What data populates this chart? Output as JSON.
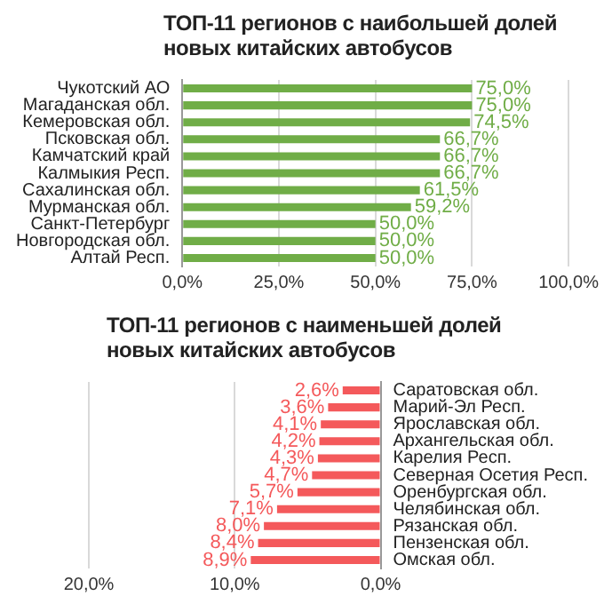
{
  "chart_data": [
    {
      "type": "bar",
      "orientation": "horizontal",
      "title": "ТОП-11 регионов с наибольшей долей новых китайских автобусов",
      "categories": [
        "Чукотский АО",
        "Магаданская обл.",
        "Кемеровская обл.",
        "Псковская обл.",
        "Камчатский край",
        "Калмыкия Респ.",
        "Сахалинская обл.",
        "Мурманская обл.",
        "Санкт-Петербург",
        "Новгородская обл.",
        "Алтай Респ."
      ],
      "series": [
        {
          "color": "#70ad47",
          "values": [
            75.0,
            75.0,
            74.5,
            66.7,
            66.7,
            66.7,
            61.5,
            59.2,
            50.0,
            50.0,
            50.0
          ],
          "value_labels": [
            "75,0%",
            "75,0%",
            "74,5%",
            "66,7%",
            "66,7%",
            "66,7%",
            "61,5%",
            "59,2%",
            "50,0%",
            "50,0%",
            "50,0%"
          ]
        }
      ],
      "xlim": [
        0,
        100
      ],
      "xticks": [
        {
          "value": 0,
          "label": "0,0%"
        },
        {
          "value": 25,
          "label": "25,0%"
        },
        {
          "value": 50,
          "label": "50,0%"
        },
        {
          "value": 75,
          "label": "75,0%"
        },
        {
          "value": 100,
          "label": "100,0%"
        }
      ],
      "grid": "x",
      "legend": false
    },
    {
      "type": "bar",
      "orientation": "horizontal",
      "title": "ТОП-11 регионов с наименьшей долей новых китайских автобусов",
      "categories": [
        "Саратовская обл.",
        "Марий-Эл Респ.",
        "Ярославская обл.",
        "Архангельская обл.",
        "Карелия Респ.",
        "Северная Осетия Респ.",
        "Оренбургская обл.",
        "Челябинская обл.",
        "Рязанская обл.",
        "Пензенская обл.",
        "Омская обл."
      ],
      "series": [
        {
          "color": "#f4595b",
          "values": [
            2.6,
            3.6,
            4.1,
            4.2,
            4.3,
            4.7,
            5.7,
            7.1,
            8.0,
            8.4,
            8.9
          ],
          "value_labels": [
            "2,6%",
            "3,6%",
            "4,1%",
            "4,2%",
            "4,3%",
            "4,7%",
            "5,7%",
            "7,1%",
            "8,0%",
            "8,4%",
            "8,9%"
          ]
        }
      ],
      "xlim": [
        20,
        0
      ],
      "xticks": [
        {
          "value": 20,
          "label": "20,0%"
        },
        {
          "value": 10,
          "label": "10,0%"
        },
        {
          "value": 0,
          "label": "0,0%"
        }
      ],
      "grid": "x",
      "legend": false
    }
  ]
}
